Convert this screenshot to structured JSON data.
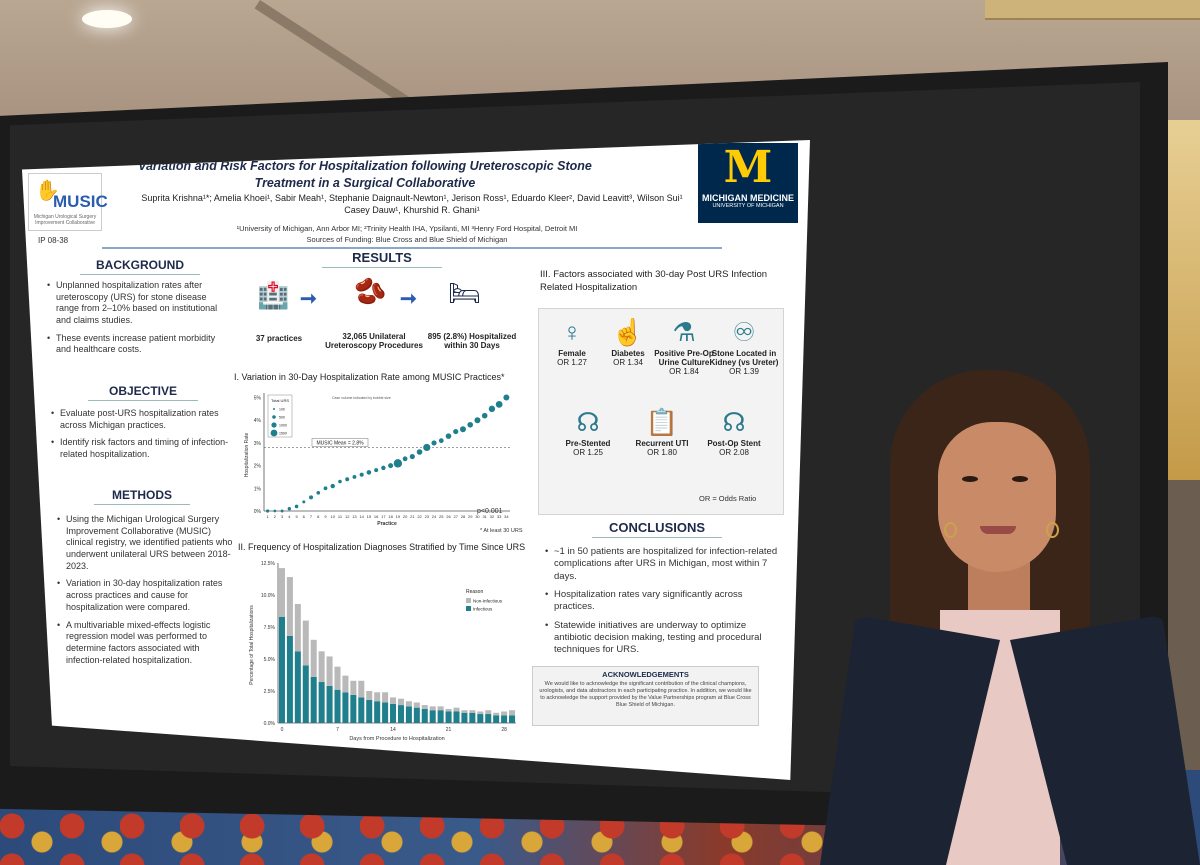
{
  "poster": {
    "title": "Variation and Risk Factors for Hospitalization following Ureteroscopic Stone Treatment in a Surgical Collaborative",
    "authors_line1": "Suprita Krishna¹*; Amelia Khoei¹, Sabir Meah¹, Stephanie Daignault-Newton¹, Jerison Ross¹, Eduardo Kleer², David Leavitt³, Wilson Sui¹",
    "authors_line2": "Casey Dauw¹, Khurshid R. Ghani¹",
    "affiliations": "¹University of Michigan, Ann Arbor MI; ²Trinity Health IHA, Ypsilanti, MI ³Henry Ford Hospital, Detroit MI",
    "funding": "Sources of Funding: Blue Cross and Blue Shield of Michigan",
    "poster_id": "IP 08-38",
    "music_logo": {
      "name": "MUSIC",
      "sub": "Michigan Urological Surgery Improvement Collaborative"
    },
    "um_logo": {
      "letter": "M",
      "line1": "MICHIGAN MEDICINE",
      "line2": "UNIVERSITY OF MICHIGAN"
    },
    "background": {
      "heading": "BACKGROUND",
      "bullets": [
        "Unplanned hospitalization rates after ureteroscopy (URS) for stone disease range from 2–10% based on institutional and claims studies.",
        "These events increase patient morbidity and healthcare costs."
      ]
    },
    "objective": {
      "heading": "OBJECTIVE",
      "bullets": [
        "Evaluate post-URS hospitalization rates across Michigan practices.",
        "Identify risk factors and timing of infection-related hospitalization."
      ]
    },
    "methods": {
      "heading": "METHODS",
      "bullets": [
        "Using the Michigan Urological Surgery Improvement Collaborative (MUSIC) clinical registry, we identified patients who underwent unilateral URS between 2018-2023.",
        "Variation in 30-day hospitalization rates across practices and cause for hospitalization were compared.",
        "A multivariable mixed-effects logistic regression model was performed to determine factors associated with infection-related hospitalization."
      ]
    },
    "results": {
      "heading": "RESULTS",
      "flow": [
        {
          "label": "37 practices"
        },
        {
          "label": "32,065 Unilateral Ureteroscopy Procedures"
        },
        {
          "label": "895 (2.8%) Hospitalized within 30 Days"
        }
      ],
      "panel1_title": "I. Variation in 30-Day Hospitalization Rate among MUSIC Practices*",
      "panel1_ylabel": "Hospitalization Rate",
      "panel1_xlabel": "Practice",
      "panel1_legend_title": "Total URS",
      "panel1_legend_items": [
        "100",
        "500",
        "1000",
        "1500"
      ],
      "panel1_note": "Case volume indicated by bubble size",
      "panel1_mean_label": "MUSIC Mean = 2.8%",
      "panel1_p": "p<0.001",
      "panel1_footnote": "* At least 30 URS",
      "panel2_title": "II. Frequency of Hospitalization Diagnoses Stratified by Time Since URS",
      "panel2_ylabel": "Percentage of Total Hospitalizations",
      "panel2_xlabel": "Days from Procedure to Hospitalization",
      "panel2_legend_title": "Reason",
      "panel2_legend_items": [
        "Non-Infectious",
        "Infectious"
      ]
    },
    "factors": {
      "heading": "III. Factors associated with 30-day Post URS Infection Related Hospitalization",
      "items": [
        {
          "name": "Female",
          "or": "OR 1.27",
          "icon": "person-female-icon"
        },
        {
          "name": "Diabetes",
          "or": "OR 1.34",
          "icon": "glucose-meter-icon"
        },
        {
          "name": "Positive Pre-Op Urine Culture",
          "or": "OR 1.84",
          "icon": "urine-culture-icon"
        },
        {
          "name": "Stone Located in Kidney (vs Ureter)",
          "or": "OR 1.39",
          "icon": "kidney-icon"
        },
        {
          "name": "Pre-Stented",
          "or": "OR 1.25",
          "icon": "kidney-stent-icon"
        },
        {
          "name": "Recurrent UTI",
          "or": "OR 1.80",
          "icon": "clipboard-icon"
        },
        {
          "name": "Post-Op Stent",
          "or": "OR 2.08",
          "icon": "kidney-stent-icon"
        }
      ],
      "footnote": "OR = Odds Ratio"
    },
    "conclusions": {
      "heading": "CONCLUSIONS",
      "bullets": [
        "~1 in 50 patients are hospitalized for infection-related complications after URS in Michigan, most within 7 days.",
        "Hospitalization rates vary significantly across practices.",
        "Statewide initiatives are underway to optimize antibiotic decision making, testing and procedural techniques for URS."
      ]
    },
    "acknowledgements": {
      "heading": "ACKNOWLEDGEMENTS",
      "body": "We would like to acknowledge the significant contribution of the clinical champions, urologists, and data abstractors in each participating practice. In addition, we would like to acknowledge the support provided by the Value Partnerships program at Blue Cross Blue Shield of Michigan."
    }
  },
  "colors": {
    "teal": "#1f7f8c",
    "grey_bar": "#b9b9b9",
    "navy": "#1e2a4a",
    "um_blue": "#00274c",
    "um_maize": "#ffcb05"
  },
  "chart_data": [
    {
      "type": "scatter",
      "title": "I. Variation in 30-Day Hospitalization Rate among MUSIC Practices*",
      "xlabel": "Practice",
      "ylabel": "Hospitalization Rate",
      "x": [
        1,
        2,
        3,
        4,
        5,
        6,
        7,
        8,
        9,
        10,
        11,
        12,
        13,
        14,
        15,
        16,
        17,
        18,
        19,
        20,
        21,
        22,
        23,
        24,
        25,
        26,
        27,
        28,
        29,
        30,
        31,
        32,
        33,
        34
      ],
      "y": [
        0.0,
        0.0,
        0.0,
        0.1,
        0.2,
        0.4,
        0.6,
        0.8,
        1.0,
        1.1,
        1.3,
        1.4,
        1.5,
        1.6,
        1.7,
        1.8,
        1.9,
        2.0,
        2.1,
        2.3,
        2.4,
        2.6,
        2.8,
        3.0,
        3.1,
        3.3,
        3.5,
        3.6,
        3.8,
        4.0,
        4.2,
        4.5,
        4.7,
        5.0
      ],
      "ylim": [
        0,
        5.2
      ],
      "yticks": [
        "0%",
        "1%",
        "2%",
        "3%",
        "4%",
        "5%"
      ],
      "reference_line": {
        "value": 2.8,
        "label": "MUSIC Mean = 2.8%"
      },
      "annotation": "p<0.001"
    },
    {
      "type": "bar",
      "title": "II. Frequency of Hospitalization Diagnoses Stratified by Time Since URS",
      "xlabel": "Days from Procedure to Hospitalization",
      "ylabel": "Percentage of Total Hospitalizations",
      "categories": [
        1,
        2,
        3,
        4,
        5,
        6,
        7,
        8,
        9,
        10,
        11,
        12,
        13,
        14,
        15,
        16,
        17,
        18,
        19,
        20,
        21,
        22,
        23,
        24,
        25,
        26,
        27,
        28,
        29,
        30
      ],
      "xticks": [
        "0",
        "7",
        "14",
        "21",
        "28"
      ],
      "yticks": [
        "0.0%",
        "2.5%",
        "5.0%",
        "7.5%",
        "10.0%",
        "12.5%"
      ],
      "ylim": [
        0,
        12.5
      ],
      "stacked": true,
      "series": [
        {
          "name": "Infectious",
          "values": [
            8.3,
            6.8,
            5.6,
            4.5,
            3.6,
            3.2,
            2.9,
            2.6,
            2.4,
            2.2,
            2.0,
            1.8,
            1.7,
            1.6,
            1.5,
            1.4,
            1.3,
            1.2,
            1.1,
            1.0,
            1.0,
            0.9,
            0.9,
            0.8,
            0.8,
            0.7,
            0.7,
            0.6,
            0.6,
            0.6
          ]
        },
        {
          "name": "Non-Infectious",
          "values": [
            3.8,
            4.6,
            3.7,
            3.5,
            2.9,
            2.4,
            2.3,
            1.8,
            1.3,
            1.1,
            1.3,
            0.7,
            0.7,
            0.8,
            0.5,
            0.5,
            0.4,
            0.4,
            0.3,
            0.3,
            0.3,
            0.2,
            0.3,
            0.2,
            0.2,
            0.2,
            0.3,
            0.2,
            0.3,
            0.4
          ]
        }
      ],
      "legend": "top-right"
    }
  ]
}
